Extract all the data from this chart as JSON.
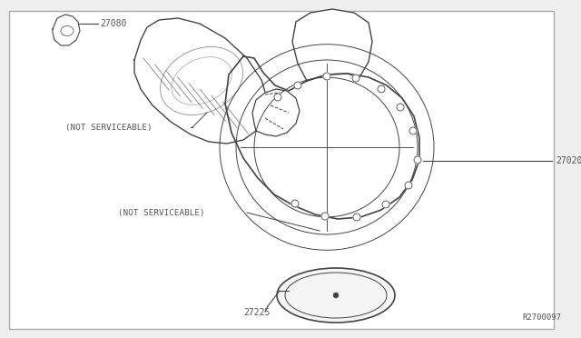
{
  "background_color": "#efefef",
  "border_color": "#aaaaaa",
  "inner_bg": "#ffffff",
  "text_color": "#555555",
  "line_color": "#444444",
  "part_number_27080": "27080",
  "part_number_27020": "27020",
  "part_number_27225": "27225",
  "not_serviceable_1": "(NOT SERVICEABLE)",
  "not_serviceable_2": "(NOT SERVICEABLE)",
  "diagram_id": "R2700097",
  "font_size_parts": 7,
  "font_size_diagram_id": 6.5
}
